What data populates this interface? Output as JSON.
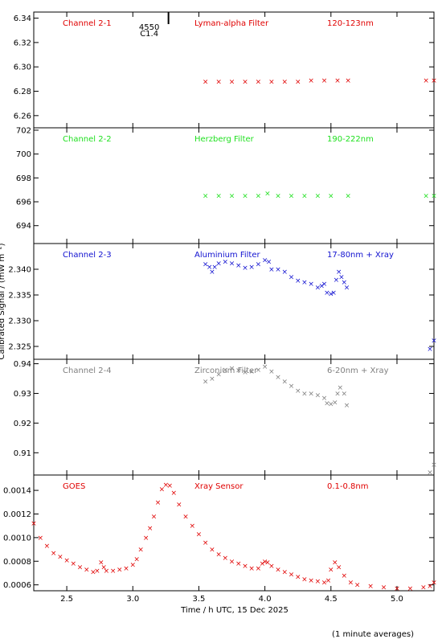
{
  "chart_data": {
    "type": "scatter",
    "xlabel": "Time / h UTC, 15 Dec 2025",
    "ylabel": "Calibrated Signal / (mW m⁻²)",
    "footnote": "(1 minute averages)",
    "xlim": [
      2.25,
      5.28
    ],
    "xticks": [
      2.5,
      3.0,
      3.5,
      4.0,
      4.5,
      5.0
    ],
    "xtick_labels": [
      "2.5",
      "3.0",
      "3.5",
      "4.0",
      "4.5",
      "5.0"
    ],
    "flare_marker": {
      "x": 3.27,
      "label_top": "4550",
      "label_bottom": "C1.4"
    },
    "panels": [
      {
        "name": "Channel 2-1",
        "filter": "Lyman-alpha Filter",
        "band": "120-123nm",
        "color": "#e00000",
        "ylim": [
          6.25,
          6.345
        ],
        "yticks": [
          6.26,
          6.28,
          6.3,
          6.32,
          6.34
        ],
        "ytick_labels": [
          "6.26",
          "6.28",
          "6.30",
          "6.32",
          "6.34"
        ],
        "points": [
          [
            3.55,
            6.288
          ],
          [
            3.65,
            6.288
          ],
          [
            3.75,
            6.288
          ],
          [
            3.85,
            6.288
          ],
          [
            3.95,
            6.288
          ],
          [
            4.05,
            6.288
          ],
          [
            4.15,
            6.288
          ],
          [
            4.25,
            6.288
          ],
          [
            4.35,
            6.289
          ],
          [
            4.45,
            6.289
          ],
          [
            4.55,
            6.289
          ],
          [
            4.63,
            6.289
          ],
          [
            5.22,
            6.289
          ],
          [
            5.28,
            6.289
          ]
        ]
      },
      {
        "name": "Channel 2-2",
        "filter": "Herzberg Filter",
        "band": "190-222nm",
        "color": "#20e020",
        "ylim": [
          692.5,
          702.2
        ],
        "yticks": [
          694,
          696,
          698,
          700,
          702
        ],
        "ytick_labels": [
          "694",
          "696",
          "698",
          "700",
          "702"
        ],
        "points": [
          [
            3.55,
            696.5
          ],
          [
            3.65,
            696.5
          ],
          [
            3.75,
            696.5
          ],
          [
            3.85,
            696.5
          ],
          [
            3.95,
            696.5
          ],
          [
            4.02,
            696.7
          ],
          [
            4.1,
            696.5
          ],
          [
            4.2,
            696.5
          ],
          [
            4.3,
            696.5
          ],
          [
            4.4,
            696.5
          ],
          [
            4.5,
            696.5
          ],
          [
            4.63,
            696.5
          ],
          [
            5.22,
            696.5
          ],
          [
            5.28,
            696.5
          ]
        ]
      },
      {
        "name": "Channel 2-3",
        "filter": "Aluminium Filter",
        "band": "17-80nm + Xray",
        "color": "#1010d0",
        "ylim": [
          2.3225,
          2.345
        ],
        "yticks": [
          2.325,
          2.33,
          2.335,
          2.34
        ],
        "ytick_labels": [
          "2.325",
          "2.330",
          "2.335",
          "2.340"
        ],
        "points": [
          [
            3.55,
            2.341
          ],
          [
            3.58,
            2.3405
          ],
          [
            3.6,
            2.3395
          ],
          [
            3.62,
            2.3405
          ],
          [
            3.65,
            2.3412
          ],
          [
            3.7,
            2.3415
          ],
          [
            3.75,
            2.3412
          ],
          [
            3.8,
            2.3408
          ],
          [
            3.85,
            2.3403
          ],
          [
            3.9,
            2.3405
          ],
          [
            3.95,
            2.341
          ],
          [
            4.0,
            2.3418
          ],
          [
            4.03,
            2.3415
          ],
          [
            4.05,
            2.34
          ],
          [
            4.1,
            2.34
          ],
          [
            4.15,
            2.3395
          ],
          [
            4.2,
            2.3385
          ],
          [
            4.25,
            2.3378
          ],
          [
            4.3,
            2.3375
          ],
          [
            4.35,
            2.3372
          ],
          [
            4.4,
            2.3365
          ],
          [
            4.43,
            2.3368
          ],
          [
            4.45,
            2.3372
          ],
          [
            4.47,
            2.3355
          ],
          [
            4.5,
            2.3352
          ],
          [
            4.52,
            2.3355
          ],
          [
            4.54,
            2.338
          ],
          [
            4.56,
            2.3395
          ],
          [
            4.58,
            2.3385
          ],
          [
            4.6,
            2.3375
          ],
          [
            4.62,
            2.3365
          ],
          [
            5.25,
            2.3245
          ],
          [
            5.28,
            2.3262
          ]
        ]
      },
      {
        "name": "Channel 2-4",
        "filter": "Zirconium Filter",
        "band": "6-20nm + Xray",
        "color": "#808080",
        "ylim": [
          0.9025,
          0.9415
        ],
        "yticks": [
          0.91,
          0.92,
          0.93,
          0.94
        ],
        "ytick_labels": [
          "0.91",
          "0.92",
          "0.93",
          "0.94"
        ],
        "points": [
          [
            3.55,
            0.934
          ],
          [
            3.6,
            0.935
          ],
          [
            3.65,
            0.9365
          ],
          [
            3.7,
            0.938
          ],
          [
            3.75,
            0.9385
          ],
          [
            3.8,
            0.9378
          ],
          [
            3.85,
            0.9372
          ],
          [
            3.9,
            0.9375
          ],
          [
            3.95,
            0.938
          ],
          [
            4.0,
            0.939
          ],
          [
            4.05,
            0.9375
          ],
          [
            4.1,
            0.9355
          ],
          [
            4.15,
            0.934
          ],
          [
            4.2,
            0.9325
          ],
          [
            4.25,
            0.931
          ],
          [
            4.3,
            0.93
          ],
          [
            4.35,
            0.93
          ],
          [
            4.4,
            0.9295
          ],
          [
            4.45,
            0.9285
          ],
          [
            4.47,
            0.9268
          ],
          [
            4.5,
            0.9265
          ],
          [
            4.53,
            0.927
          ],
          [
            4.55,
            0.93
          ],
          [
            4.57,
            0.932
          ],
          [
            4.6,
            0.93
          ],
          [
            4.62,
            0.926
          ],
          [
            5.25,
            0.9035
          ],
          [
            5.28,
            0.906
          ]
        ]
      },
      {
        "name": "GOES",
        "filter": "Xray Sensor",
        "band": "0.1-0.8nm",
        "color": "#e00000",
        "ylim": [
          0.00055,
          0.00153
        ],
        "yticks": [
          0.0006,
          0.0008,
          0.001,
          0.0012,
          0.0014
        ],
        "ytick_labels": [
          "0.0006",
          "0.0008",
          "0.0010",
          "0.0012",
          "0.0014"
        ],
        "points": [
          [
            2.25,
            0.00112
          ],
          [
            2.3,
            0.001
          ],
          [
            2.35,
            0.00093
          ],
          [
            2.4,
            0.00087
          ],
          [
            2.45,
            0.00084
          ],
          [
            2.5,
            0.00081
          ],
          [
            2.55,
            0.00078
          ],
          [
            2.6,
            0.00075
          ],
          [
            2.65,
            0.00073
          ],
          [
            2.7,
            0.00071
          ],
          [
            2.73,
            0.00072
          ],
          [
            2.76,
            0.00079
          ],
          [
            2.78,
            0.00075
          ],
          [
            2.8,
            0.00072
          ],
          [
            2.85,
            0.00072
          ],
          [
            2.9,
            0.00073
          ],
          [
            2.95,
            0.00074
          ],
          [
            3.0,
            0.00077
          ],
          [
            3.03,
            0.00082
          ],
          [
            3.06,
            0.0009
          ],
          [
            3.1,
            0.001
          ],
          [
            3.13,
            0.00108
          ],
          [
            3.16,
            0.00118
          ],
          [
            3.19,
            0.0013
          ],
          [
            3.22,
            0.00141
          ],
          [
            3.25,
            0.00145
          ],
          [
            3.28,
            0.00144
          ],
          [
            3.31,
            0.00138
          ],
          [
            3.35,
            0.00128
          ],
          [
            3.4,
            0.00118
          ],
          [
            3.45,
            0.0011
          ],
          [
            3.5,
            0.00103
          ],
          [
            3.55,
            0.00096
          ],
          [
            3.6,
            0.0009
          ],
          [
            3.65,
            0.00086
          ],
          [
            3.7,
            0.00083
          ],
          [
            3.75,
            0.0008
          ],
          [
            3.8,
            0.00078
          ],
          [
            3.85,
            0.00076
          ],
          [
            3.9,
            0.00074
          ],
          [
            3.95,
            0.00074
          ],
          [
            3.98,
            0.00078
          ],
          [
            4.0,
            0.0008
          ],
          [
            4.02,
            0.00079
          ],
          [
            4.05,
            0.00076
          ],
          [
            4.1,
            0.00073
          ],
          [
            4.15,
            0.00071
          ],
          [
            4.2,
            0.00069
          ],
          [
            4.25,
            0.00067
          ],
          [
            4.3,
            0.00065
          ],
          [
            4.35,
            0.00064
          ],
          [
            4.4,
            0.00063
          ],
          [
            4.45,
            0.00062
          ],
          [
            4.48,
            0.00064
          ],
          [
            4.5,
            0.00073
          ],
          [
            4.53,
            0.00079
          ],
          [
            4.56,
            0.00075
          ],
          [
            4.6,
            0.00068
          ],
          [
            4.65,
            0.00062
          ],
          [
            4.7,
            0.0006
          ],
          [
            4.8,
            0.00059
          ],
          [
            4.9,
            0.00058
          ],
          [
            5.0,
            0.00057
          ],
          [
            5.1,
            0.00057
          ],
          [
            5.2,
            0.00058
          ],
          [
            5.25,
            0.00059
          ],
          [
            5.28,
            0.00062
          ]
        ]
      }
    ]
  }
}
